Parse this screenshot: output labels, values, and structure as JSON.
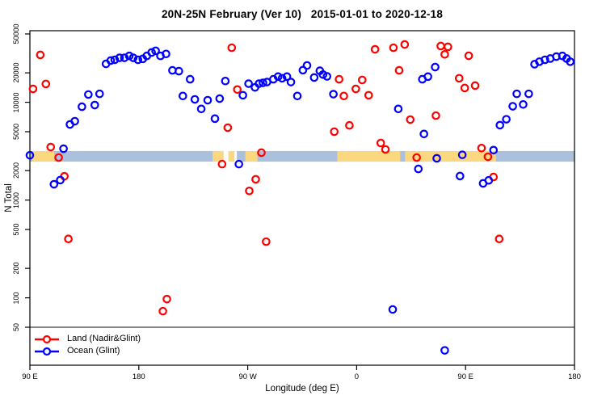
{
  "title": "20N-25N February (Ver 10)   2015-01-01 to 2020-12-18",
  "legend": {
    "items": [
      {
        "label": "Land (Nadir&Glint)",
        "color": "#FF0000"
      },
      {
        "label": "Ocean (Glint)",
        "color": "#0000FF"
      }
    ]
  },
  "chart_data": {
    "type": "scatter",
    "title": "20N-25N February (Ver 10)   2015-01-01 to 2020-12-18",
    "xlabel": "Longitude (deg E)",
    "ylabel": "N Total",
    "x_axis": {
      "span_deg": 450,
      "tick_deg": [
        0,
        90,
        180,
        270,
        360,
        450
      ],
      "tick_labels": [
        "90 E",
        "180",
        "90 W",
        "0",
        "90 E",
        "180"
      ],
      "note": "longitude wraps eastward: 90E, 180, 90W, 0, 90E, 180"
    },
    "y_axis": {
      "scale": "log",
      "tick_values": [
        50000,
        20000,
        10000,
        5000,
        2000,
        1000,
        500,
        200,
        100,
        50
      ],
      "range": [
        20,
        54000
      ]
    },
    "reference_line_value": 50,
    "band": {
      "value_range": [
        2470,
        3170
      ],
      "base_color": "#AAC0DD",
      "orange_color": "#FBD780",
      "base_segments_deg": [
        [
          0,
          160
        ],
        [
          171,
          450
        ]
      ],
      "orange_segments_deg": [
        [
          2,
          20
        ],
        [
          151,
          160
        ],
        [
          164,
          169
        ],
        [
          178,
          188
        ],
        [
          254,
          306
        ],
        [
          310,
          385
        ]
      ]
    },
    "series": [
      {
        "name": "Land (Nadir&Glint)",
        "color": "#FF0000",
        "points": [
          [
            2.6,
            13700
          ],
          [
            8.6,
            30500
          ],
          [
            13.2,
            15400
          ],
          [
            17.2,
            3480
          ],
          [
            23.8,
            2720
          ],
          [
            28.5,
            1750
          ],
          [
            31.8,
            400
          ],
          [
            109.9,
            73
          ],
          [
            113.2,
            97
          ],
          [
            158.8,
            2330
          ],
          [
            163.5,
            5500
          ],
          [
            166.8,
            36100
          ],
          [
            171.4,
            13500
          ],
          [
            181.3,
            1240
          ],
          [
            186.6,
            1630
          ],
          [
            191.3,
            3050
          ],
          [
            195.2,
            375
          ],
          [
            251.5,
            5000
          ],
          [
            255.5,
            17200
          ],
          [
            259.4,
            11600
          ],
          [
            264.0,
            5800
          ],
          [
            269.3,
            13700
          ],
          [
            274.6,
            16900
          ],
          [
            279.9,
            11800
          ],
          [
            285.2,
            34800
          ],
          [
            289.9,
            3830
          ],
          [
            293.8,
            3290
          ],
          [
            300.4,
            36100
          ],
          [
            305.1,
            21200
          ],
          [
            309.7,
            39000
          ],
          [
            314.3,
            6650
          ],
          [
            319.6,
            2720
          ],
          [
            335.5,
            7300
          ],
          [
            339.5,
            37600
          ],
          [
            342.8,
            30900
          ],
          [
            345.4,
            36900
          ],
          [
            354.7,
            17600
          ],
          [
            359.3,
            14000
          ],
          [
            362.6,
            29900
          ],
          [
            367.9,
            14800
          ],
          [
            373.2,
            3400
          ],
          [
            378.5,
            2770
          ],
          [
            383.1,
            1720
          ],
          [
            387.8,
            400
          ]
        ]
      },
      {
        "name": "Ocean (Glint)",
        "color": "#0000FF",
        "points": [
          [
            0,
            2870
          ],
          [
            19.9,
            1450
          ],
          [
            25.1,
            1600
          ],
          [
            27.8,
            3350
          ],
          [
            33.1,
            5930
          ],
          [
            37.1,
            6400
          ],
          [
            43,
            9000
          ],
          [
            48.3,
            12000
          ],
          [
            53.6,
            9360
          ],
          [
            57.6,
            12200
          ],
          [
            62.9,
            24700
          ],
          [
            66.8,
            26700
          ],
          [
            70.1,
            27200
          ],
          [
            74.1,
            28500
          ],
          [
            78.1,
            28500
          ],
          [
            82.1,
            29800
          ],
          [
            85.4,
            28500
          ],
          [
            89.3,
            27200
          ],
          [
            93.3,
            27800
          ],
          [
            96.6,
            29800
          ],
          [
            100.6,
            32300
          ],
          [
            103.9,
            33600
          ],
          [
            107.9,
            29800
          ],
          [
            112.5,
            31200
          ],
          [
            117.8,
            21200
          ],
          [
            123.1,
            20800
          ],
          [
            126.4,
            11600
          ],
          [
            132.4,
            17200
          ],
          [
            136.3,
            10700
          ],
          [
            141.6,
            8550
          ],
          [
            146.9,
            10500
          ],
          [
            152.9,
            6800
          ],
          [
            156.8,
            10900
          ],
          [
            161.5,
            16500
          ],
          [
            172.7,
            2330
          ],
          [
            176,
            11800
          ],
          [
            180.7,
            15500
          ],
          [
            186,
            14200
          ],
          [
            189.3,
            15500
          ],
          [
            192.6,
            15800
          ],
          [
            195.9,
            16100
          ],
          [
            201.2,
            17200
          ],
          [
            205.1,
            18300
          ],
          [
            208.4,
            17600
          ],
          [
            212.4,
            18300
          ],
          [
            215.7,
            16100
          ],
          [
            221,
            11600
          ],
          [
            225.6,
            21300
          ],
          [
            229,
            23800
          ],
          [
            234.9,
            17900
          ],
          [
            239.6,
            21000
          ],
          [
            242.2,
            19200
          ],
          [
            245.5,
            18400
          ],
          [
            250.8,
            12100
          ],
          [
            299.8,
            76
          ],
          [
            304.4,
            8550
          ],
          [
            321,
            2080
          ],
          [
            324.3,
            17200
          ],
          [
            325.6,
            4740
          ],
          [
            328.9,
            18300
          ],
          [
            334.9,
            22900
          ],
          [
            336.2,
            2670
          ],
          [
            342.8,
            29
          ],
          [
            355.4,
            1760
          ],
          [
            357.3,
            2900
          ],
          [
            374.5,
            1480
          ],
          [
            379.1,
            1590
          ],
          [
            383.1,
            3240
          ],
          [
            388.4,
            5830
          ],
          [
            393.7,
            6700
          ],
          [
            399,
            9100
          ],
          [
            402.3,
            12200
          ],
          [
            407.6,
            9500
          ],
          [
            412.2,
            12200
          ],
          [
            417,
            24500
          ],
          [
            421,
            26000
          ],
          [
            425.6,
            27200
          ],
          [
            430,
            28000
          ],
          [
            435,
            29300
          ],
          [
            440,
            29800
          ],
          [
            443.5,
            28000
          ],
          [
            446.5,
            26000
          ]
        ]
      }
    ]
  }
}
